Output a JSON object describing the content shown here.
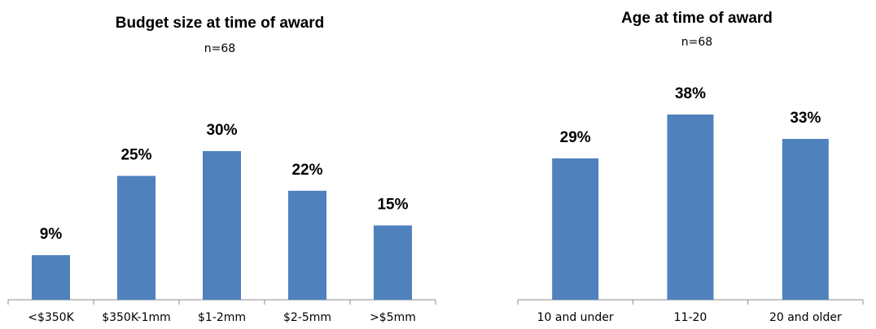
{
  "chart_data": [
    {
      "type": "bar",
      "title": "Budget size at time of award",
      "subtitle": "n=68",
      "categories": [
        "<$350K",
        "$350K-1mm",
        "$1-2mm",
        "$2-5mm",
        ">$5mm"
      ],
      "values": [
        9,
        25,
        30,
        22,
        15
      ],
      "data_labels": [
        "9%",
        "25%",
        "30%",
        "22%",
        "15%"
      ],
      "ylim": [
        0,
        40
      ],
      "grid": false,
      "bar_color": "#4F81BD"
    },
    {
      "type": "bar",
      "title": "Age at time of award",
      "subtitle": "n=68",
      "categories": [
        "10 and under",
        "11-20",
        "20 and older"
      ],
      "values": [
        29,
        38,
        33
      ],
      "data_labels": [
        "29%",
        "38%",
        "33%"
      ],
      "ylim": [
        0,
        40
      ],
      "grid": false,
      "bar_color": "#4F81BD"
    }
  ]
}
